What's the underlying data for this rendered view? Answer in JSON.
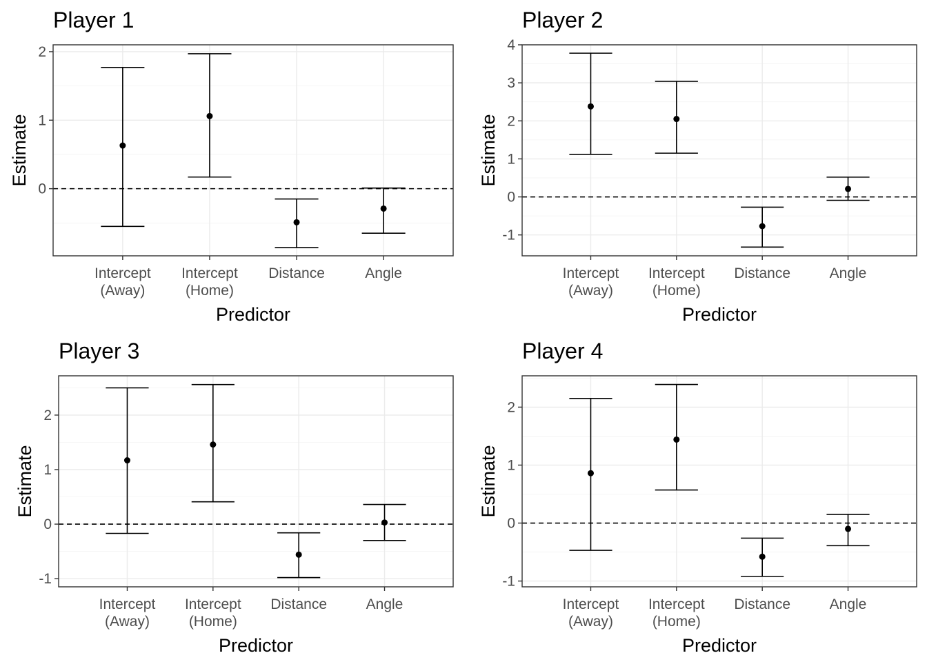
{
  "chart_data": [
    {
      "type": "errorbar",
      "title": "Player 1",
      "xlabel": "Predictor",
      "ylabel": "Estimate",
      "categories": [
        "Intercept\n(Away)",
        "Intercept\n(Home)",
        "Distance",
        "Angle"
      ],
      "estimate": [
        0.63,
        1.06,
        -0.49,
        -0.29
      ],
      "lower": [
        -0.55,
        0.17,
        -0.86,
        -0.65
      ],
      "upper": [
        1.77,
        1.97,
        -0.15,
        0.01
      ],
      "ylim": [
        -0.98,
        2.1
      ],
      "yticks": [
        0,
        1,
        2
      ],
      "reference_line": 0,
      "grid": true
    },
    {
      "type": "errorbar",
      "title": "Player 2",
      "xlabel": "Predictor",
      "ylabel": "Estimate",
      "categories": [
        "Intercept\n(Away)",
        "Intercept\n(Home)",
        "Distance",
        "Angle"
      ],
      "estimate": [
        2.38,
        2.05,
        -0.77,
        0.21
      ],
      "lower": [
        1.12,
        1.15,
        -1.32,
        -0.09
      ],
      "upper": [
        3.78,
        3.04,
        -0.27,
        0.52
      ],
      "ylim": [
        -1.55,
        4.0
      ],
      "yticks": [
        -1,
        0,
        1,
        2,
        3,
        4
      ],
      "reference_line": 0,
      "grid": true
    },
    {
      "type": "errorbar",
      "title": "Player 3",
      "xlabel": "Predictor",
      "ylabel": "Estimate",
      "categories": [
        "Intercept\n(Away)",
        "Intercept\n(Home)",
        "Distance",
        "Angle"
      ],
      "estimate": [
        1.17,
        1.46,
        -0.56,
        0.03
      ],
      "lower": [
        -0.17,
        0.41,
        -0.98,
        -0.3
      ],
      "upper": [
        2.5,
        2.56,
        -0.16,
        0.36
      ],
      "ylim": [
        -1.15,
        2.72
      ],
      "yticks": [
        -1,
        0,
        1,
        2
      ],
      "reference_line": 0,
      "grid": true
    },
    {
      "type": "errorbar",
      "title": "Player 4",
      "xlabel": "Predictor",
      "ylabel": "Estimate",
      "categories": [
        "Intercept\n(Away)",
        "Intercept\n(Home)",
        "Distance",
        "Angle"
      ],
      "estimate": [
        0.86,
        1.44,
        -0.58,
        -0.1
      ],
      "lower": [
        -0.47,
        0.57,
        -0.92,
        -0.39
      ],
      "upper": [
        2.15,
        2.39,
        -0.26,
        0.15
      ],
      "ylim": [
        -1.1,
        2.54
      ],
      "yticks": [
        -1,
        0,
        1,
        2
      ],
      "reference_line": 0,
      "grid": true
    }
  ]
}
